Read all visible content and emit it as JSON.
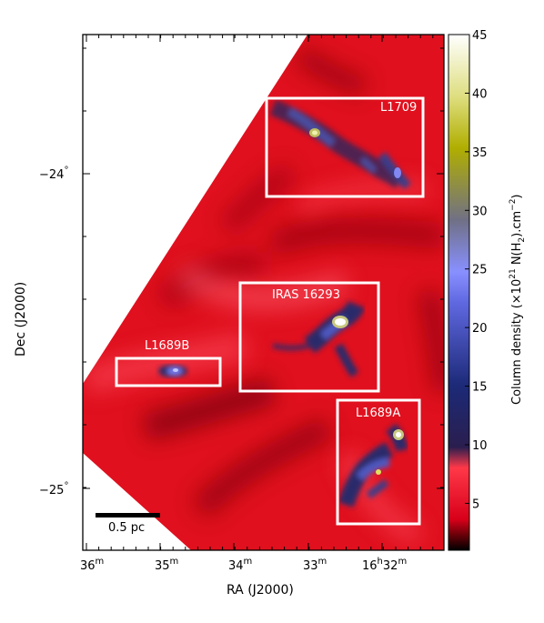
{
  "figure": {
    "x_axis": {
      "label": "RA (J2000)",
      "ticks": [
        {
          "main": "36",
          "sup": "m"
        },
        {
          "main": "35",
          "sup": "m"
        },
        {
          "main": "34",
          "sup": "m"
        },
        {
          "main": "33",
          "sup": "m"
        },
        {
          "main": "16",
          "sup": "h",
          "main2": "32",
          "sup2": "m"
        }
      ]
    },
    "y_axis": {
      "label": "Dec (J2000)",
      "ticks": [
        {
          "value": "−24",
          "sup": "°"
        },
        {
          "value": "−25",
          "sup": "°"
        }
      ]
    },
    "regions": [
      {
        "name": "L1709"
      },
      {
        "name": "IRAS 16293"
      },
      {
        "name": "L1689B"
      },
      {
        "name": "L1689A"
      }
    ],
    "scale_bar": {
      "label": "0.5 pc"
    },
    "colorbar": {
      "label_prefix": "Column density (×10",
      "label_exp": "21",
      "label_mid": " N(H",
      "label_sub": "2",
      "label_suffix": ").cm",
      "label_exp2": "−2",
      "label_close": ")",
      "ticks": [
        "5",
        "10",
        "15",
        "20",
        "25",
        "30",
        "35",
        "40",
        "45"
      ],
      "range": [
        1,
        45
      ],
      "colors": [
        "#000000",
        "#d8001a",
        "#ff3040",
        "#1c2868",
        "#7a82ff",
        "#aaa800",
        "#ffffff"
      ]
    },
    "colors": {
      "background": "#d8101c",
      "box": "#ffffff"
    }
  }
}
